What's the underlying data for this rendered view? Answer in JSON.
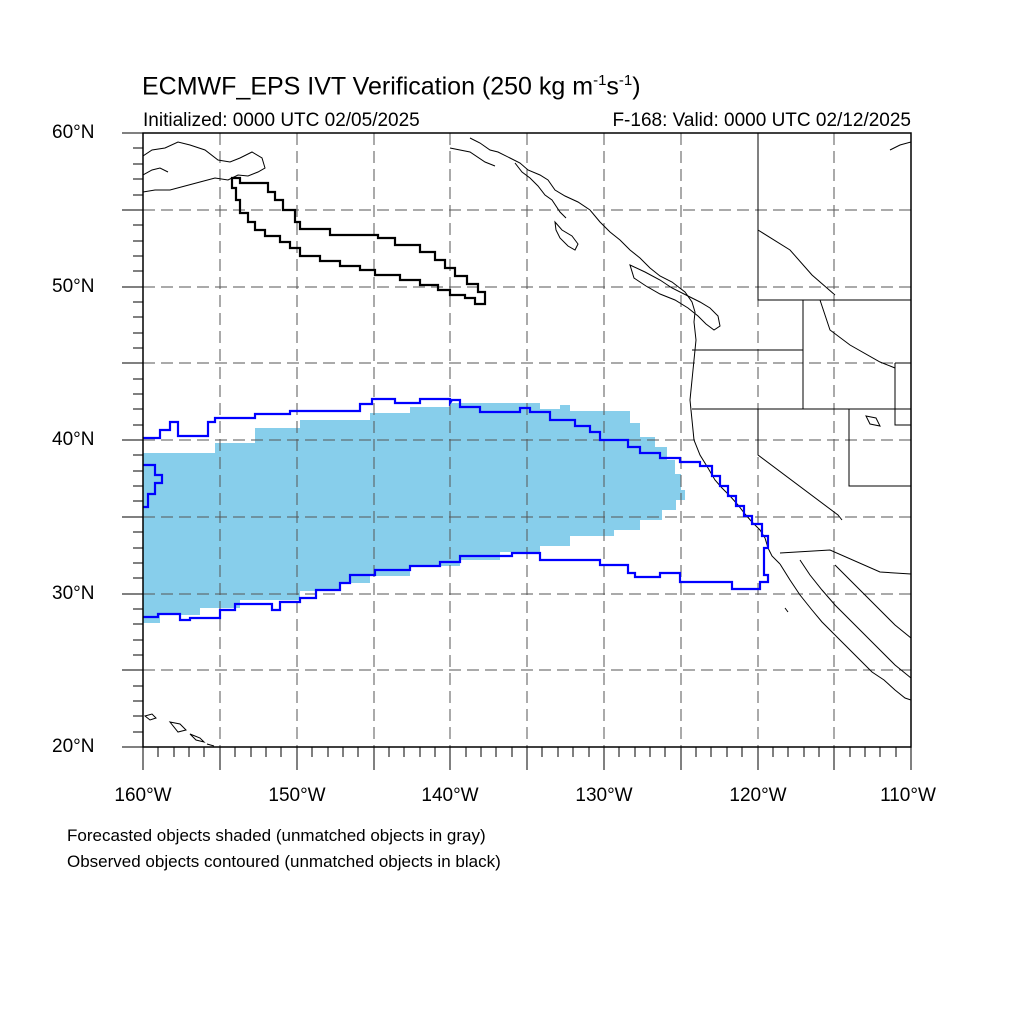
{
  "header": {
    "title_main": "ECMWF_EPS IVT Verification (250 kg m",
    "title_exp1": "-1",
    "title_mid": "s",
    "title_exp2": "-1",
    "title_end": ")",
    "initialized": "Initialized: 0000 UTC 02/05/2025",
    "valid": "F-168: Valid: 0000 UTC 02/12/2025"
  },
  "axes": {
    "lat_labels": [
      "60°N",
      "50°N",
      "40°N",
      "30°N",
      "20°N"
    ],
    "lon_labels": [
      "160°W",
      "150°W",
      "140°W",
      "130°W",
      "120°W",
      "110°W"
    ]
  },
  "legend": {
    "forecast_note": "Forecasted objects shaded (unmatched objects in gray)",
    "observed_note": "Observed objects contoured (unmatched objects in black)"
  },
  "colors": {
    "forecast_fill": "#87CEEB",
    "matched_contour": "#0000FF",
    "unmatched_contour": "#000000",
    "coastline": "#000000",
    "grid": "#555555"
  },
  "map_extent": {
    "lon_min": -160,
    "lon_max": -110,
    "lat_min": 20,
    "lat_max": 60
  }
}
